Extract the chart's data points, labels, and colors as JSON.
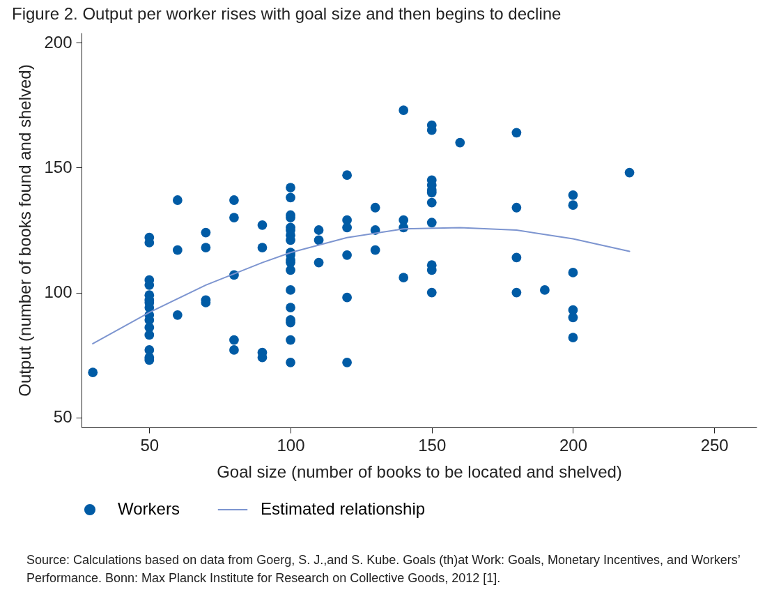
{
  "chart_data": {
    "type": "scatter",
    "title": "Figure 2. Output per worker rises with goal size and then begins to decline",
    "xlabel": "Goal size (number of books to be located and shelved)",
    "ylabel": "Output (number of books found and shelved)",
    "xlim": [
      26,
      265
    ],
    "ylim": [
      46,
      204
    ],
    "xticks": [
      50,
      100,
      150,
      200,
      250
    ],
    "yticks": [
      50,
      100,
      150,
      200
    ],
    "grid": false,
    "legend": "bottom",
    "series": [
      {
        "name": "Workers",
        "marker": "circle",
        "color": "#005ba5",
        "x": [
          30,
          50,
          50,
          50,
          50,
          50,
          50,
          50,
          50,
          50,
          50,
          50,
          50,
          50,
          50,
          50,
          60,
          60,
          60,
          70,
          70,
          70,
          70,
          80,
          80,
          80,
          80,
          80,
          90,
          90,
          90,
          90,
          100,
          100,
          100,
          100,
          100,
          100,
          100,
          100,
          100,
          100,
          100,
          100,
          100,
          100,
          100,
          100,
          100,
          100,
          100,
          110,
          110,
          110,
          120,
          120,
          120,
          120,
          120,
          120,
          130,
          130,
          130,
          140,
          140,
          140,
          140,
          150,
          150,
          150,
          150,
          150,
          150,
          150,
          150,
          150,
          150,
          150,
          160,
          180,
          180,
          180,
          180,
          190,
          200,
          200,
          200,
          200,
          200,
          200,
          220
        ],
        "values": [
          68,
          122,
          120,
          105,
          103,
          99,
          97,
          96,
          94,
          91,
          89,
          86,
          83,
          77,
          74,
          73,
          137,
          117,
          91,
          124,
          118,
          97,
          96,
          137,
          130,
          107,
          81,
          77,
          127,
          118,
          76,
          74,
          142,
          138,
          131,
          130,
          126,
          125,
          123,
          121,
          116,
          115,
          113,
          112,
          109,
          101,
          94,
          89,
          88,
          81,
          72,
          125,
          121,
          112,
          147,
          129,
          126,
          115,
          98,
          72,
          134,
          125,
          117,
          173,
          129,
          126,
          106,
          167,
          165,
          145,
          143,
          141,
          140,
          136,
          128,
          111,
          109,
          100,
          160,
          164,
          134,
          114,
          100,
          101,
          139,
          135,
          108,
          93,
          90,
          82,
          148
        ]
      },
      {
        "name": "Estimated relationship",
        "type": "line",
        "color": "#7d95d0",
        "x": [
          30,
          50,
          70,
          90,
          100,
          120,
          140,
          160,
          180,
          200,
          220
        ],
        "values": [
          79.5,
          92,
          103,
          112,
          116,
          122,
          125.5,
          126,
          125,
          121.5,
          116.5
        ]
      }
    ],
    "annotations": [
      "Source: Calculations based on data from Goerg, S. J.,and S. Kube. Goals (th)at Work: Goals, Monetary Incentives, and Workers’ Performance. Bonn: Max Planck Institute for Research on Collective Goods, 2012 [1]."
    ]
  }
}
